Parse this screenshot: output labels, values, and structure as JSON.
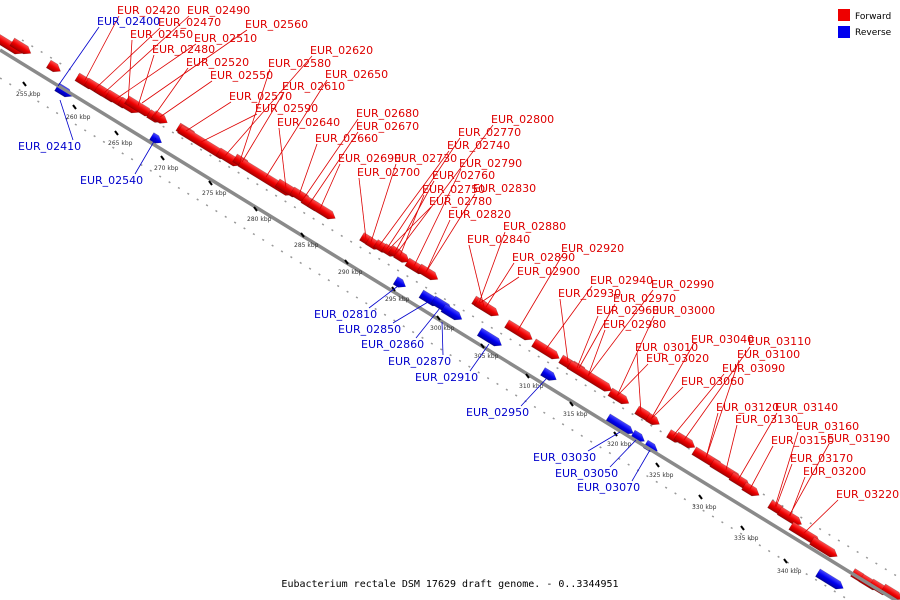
{
  "caption": "Eubacterium rectale DSM 17629 draft genome. - 0..3344951",
  "legend": [
    {
      "label": "Forward",
      "color": "#ee0000"
    },
    {
      "label": "Reverse",
      "color": "#0000ee"
    }
  ],
  "ticks": [
    "255 kbp",
    "260 kbp",
    "265 kbp",
    "270 kbp",
    "275 kbp",
    "280 kbp",
    "285 kbp",
    "290 kbp",
    "295 kbp",
    "300 kbp",
    "305 kbp",
    "310 kbp",
    "315 kbp",
    "320 kbp",
    "325 kbp",
    "330 kbp",
    "335 kbp",
    "340 kbp"
  ],
  "forward_labels": [
    "EUR_02420",
    "EUR_02490",
    "EUR_02470",
    "EUR_02560",
    "EUR_02450",
    "EUR_02510",
    "EUR_02480",
    "EUR_02620",
    "EUR_02520",
    "EUR_02580",
    "EUR_02650",
    "EUR_02550",
    "EUR_02610",
    "EUR_02570",
    "EUR_02590",
    "EUR_02680",
    "EUR_02640",
    "EUR_02800",
    "EUR_02670",
    "EUR_02770",
    "EUR_02660",
    "EUR_02740",
    "EUR_02690",
    "EUR_02730",
    "EUR_02790",
    "EUR_02760",
    "EUR_02700",
    "EUR_02750",
    "EUR_02830",
    "EUR_02780",
    "EUR_02820",
    "EUR_02880",
    "EUR_02840",
    "EUR_02920",
    "EUR_02890",
    "EUR_02900",
    "EUR_02940",
    "EUR_02990",
    "EUR_02930",
    "EUR_02970",
    "EUR_02960",
    "EUR_03000",
    "EUR_02980",
    "EUR_03040",
    "EUR_03110",
    "EUR_03010",
    "EUR_03100",
    "EUR_03020",
    "EUR_03090",
    "EUR_03060",
    "EUR_03120",
    "EUR_03140",
    "EUR_03130",
    "EUR_03160",
    "EUR_03150",
    "EUR_03190",
    "EUR_03170",
    "EUR_03200",
    "EUR_03220"
  ],
  "reverse_labels": [
    "EUR_02400",
    "EUR_02410",
    "EUR_02540",
    "EUR_02810",
    "EUR_02850",
    "EUR_02860",
    "EUR_02870",
    "EUR_02910",
    "EUR_02950",
    "EUR_03030",
    "EUR_03050",
    "EUR_03070"
  ]
}
